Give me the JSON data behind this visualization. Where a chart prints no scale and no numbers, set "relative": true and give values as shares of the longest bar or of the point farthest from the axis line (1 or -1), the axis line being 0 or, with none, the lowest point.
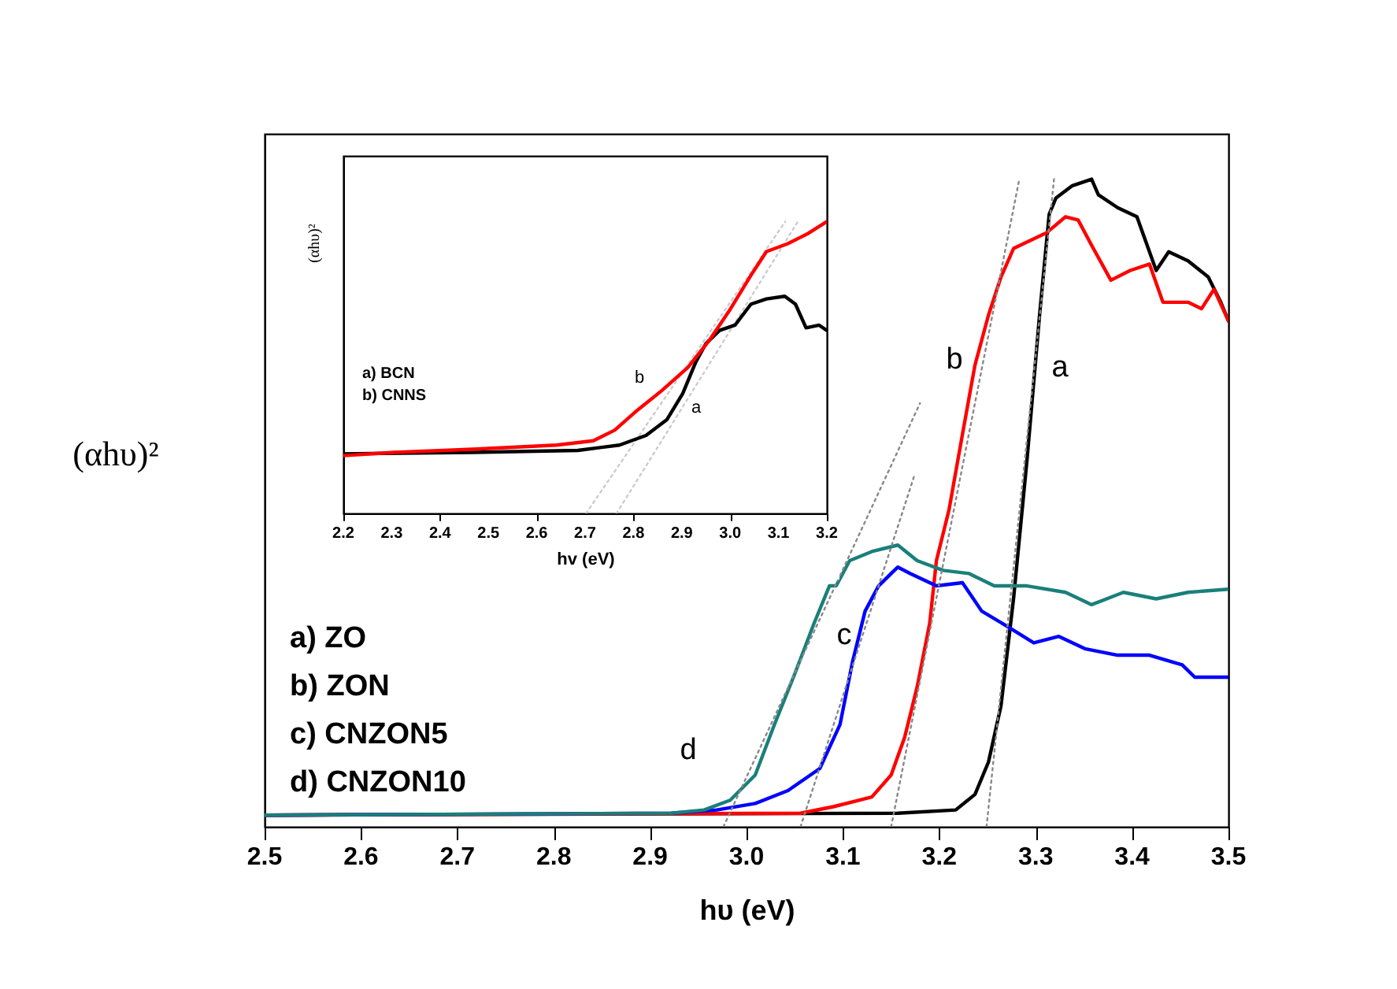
{
  "chart_data": [
    {
      "type": "line",
      "relative": true,
      "xlabel": "hυ (eV)",
      "ylabel": "(αhυ)²",
      "xlim": [
        2.5,
        3.5
      ],
      "xticks": [
        2.5,
        2.6,
        2.7,
        2.8,
        2.9,
        {
          "value": 3,
          "label": "3.0"
        },
        3.1,
        3.2,
        3.3,
        3.4,
        3.5
      ],
      "annotations": [
        "a) ZO",
        "b) ZON",
        "c) CNZON5",
        "d) CNZON10",
        "a",
        "b",
        "c",
        "d"
      ],
      "series": [
        {
          "type": "line",
          "color": "#000000",
          "x": [
            2.5,
            3.157,
            3.217,
            3.237,
            3.251,
            3.264,
            3.277,
            3.291,
            3.304,
            3.314,
            3.321,
            3.338,
            3.358,
            3.365,
            3.385,
            3.405,
            3.425,
            3.438,
            3.458,
            3.479,
            3.492,
            3.5
          ],
          "values": [
            0.018,
            0.021,
            0.026,
            0.05,
            0.1,
            0.187,
            0.352,
            0.567,
            0.79,
            0.946,
            0.971,
            0.99,
            1.0,
            0.976,
            0.956,
            0.942,
            0.859,
            0.888,
            0.874,
            0.849,
            0.81,
            0.781
          ]
        },
        {
          "type": "line",
          "color": "#ff0000",
          "x": [
            2.5,
            3.056,
            3.09,
            3.13,
            3.15,
            3.164,
            3.177,
            3.19,
            3.197,
            3.21,
            3.224,
            3.237,
            3.251,
            3.264,
            3.277,
            3.311,
            3.331,
            3.344,
            3.358,
            3.378,
            3.398,
            3.418,
            3.432,
            3.458,
            3.472,
            3.485,
            3.5
          ],
          "values": [
            0.018,
            0.021,
            0.031,
            0.046,
            0.08,
            0.138,
            0.216,
            0.314,
            0.411,
            0.489,
            0.606,
            0.713,
            0.79,
            0.849,
            0.893,
            0.917,
            0.942,
            0.937,
            0.898,
            0.844,
            0.859,
            0.869,
            0.81,
            0.81,
            0.8,
            0.83,
            0.781
          ]
        },
        {
          "type": "line",
          "color": "#0000ff",
          "x": [
            2.5,
            2.922,
            2.969,
            3.009,
            3.043,
            3.076,
            3.097,
            3.11,
            3.123,
            3.137,
            3.15,
            3.157,
            3.17,
            3.197,
            3.224,
            3.244,
            3.271,
            3.298,
            3.324,
            3.351,
            3.385,
            3.418,
            3.452,
            3.465,
            3.5
          ],
          "values": [
            0.018,
            0.021,
            0.026,
            0.036,
            0.056,
            0.09,
            0.158,
            0.255,
            0.333,
            0.372,
            0.391,
            0.401,
            0.391,
            0.372,
            0.377,
            0.333,
            0.309,
            0.284,
            0.294,
            0.275,
            0.265,
            0.265,
            0.25,
            0.231,
            0.231
          ]
        },
        {
          "type": "line",
          "color": "#1a7f7a",
          "x": [
            2.5,
            2.922,
            2.956,
            2.983,
            3.009,
            3.029,
            3.05,
            3.07,
            3.086,
            3.093,
            3.107,
            3.13,
            3.157,
            3.177,
            3.204,
            3.231,
            3.257,
            3.291,
            3.331,
            3.358,
            3.391,
            3.425,
            3.458,
            3.5
          ],
          "values": [
            0.018,
            0.021,
            0.026,
            0.041,
            0.08,
            0.158,
            0.236,
            0.314,
            0.372,
            0.372,
            0.411,
            0.425,
            0.435,
            0.411,
            0.396,
            0.391,
            0.372,
            0.372,
            0.362,
            0.343,
            0.362,
            0.352,
            0.362,
            0.367
          ]
        },
        {
          "type": "line",
          "color": "#888888",
          "line_style": "dotted",
          "x": [
            3.249,
            3.319
          ],
          "values": [
            0,
            1.0
          ]
        },
        {
          "type": "line",
          "color": "#888888",
          "line_style": "dotted",
          "x": [
            3.15,
            3.283
          ],
          "values": [
            0,
            1.0
          ]
        },
        {
          "type": "line",
          "color": "#888888",
          "line_style": "dotted",
          "x": [
            3.056,
            3.174
          ],
          "values": [
            0,
            0.542
          ]
        },
        {
          "type": "line",
          "color": "#888888",
          "line_style": "dotted",
          "x": [
            2.976,
            3.18
          ],
          "values": [
            0,
            0.654
          ]
        }
      ]
    },
    {
      "type": "line",
      "relative": true,
      "xlabel": "hv (eV)",
      "ylabel": "(αhυ)²",
      "xlim": [
        2.2,
        3.2
      ],
      "xticks": [
        2.2,
        2.3,
        2.4,
        2.5,
        2.6,
        2.7,
        2.8,
        2.9,
        {
          "value": 3,
          "label": "3.0"
        },
        3.1,
        3.2
      ],
      "annotations": [
        "a) BCN",
        "b) CNNS",
        "b",
        "a"
      ],
      "series": [
        {
          "type": "line",
          "color": "#cccccc",
          "line_style": "dotted",
          "x": [
            2.702,
            3.114
          ],
          "values": [
            0,
            1.0
          ]
        },
        {
          "type": "line",
          "color": "#cccccc",
          "line_style": "dotted",
          "x": [
            2.765,
            3.14
          ],
          "values": [
            0,
            1.0
          ]
        },
        {
          "type": "line",
          "color": "#000000",
          "x": [
            2.2,
            2.468,
            2.685,
            2.771,
            2.826,
            2.869,
            2.902,
            2.929,
            2.95,
            2.978,
            3.01,
            3.043,
            3.075,
            3.113,
            3.135,
            3.157,
            3.184,
            3.2
          ],
          "values": [
            0.204,
            0.209,
            0.216,
            0.234,
            0.267,
            0.321,
            0.411,
            0.519,
            0.582,
            0.627,
            0.645,
            0.717,
            0.735,
            0.744,
            0.717,
            0.636,
            0.645,
            0.627
          ]
        },
        {
          "type": "line",
          "color": "#ff0000",
          "x": [
            2.2,
            2.305,
            2.468,
            2.641,
            2.717,
            2.761,
            2.804,
            2.858,
            2.913,
            2.956,
            3.0,
            3.043,
            3.075,
            3.119,
            3.162,
            3.2
          ],
          "values": [
            0.198,
            0.209,
            0.22,
            0.234,
            0.249,
            0.285,
            0.348,
            0.42,
            0.501,
            0.591,
            0.699,
            0.816,
            0.897,
            0.924,
            0.96,
            1.0
          ]
        }
      ]
    }
  ]
}
